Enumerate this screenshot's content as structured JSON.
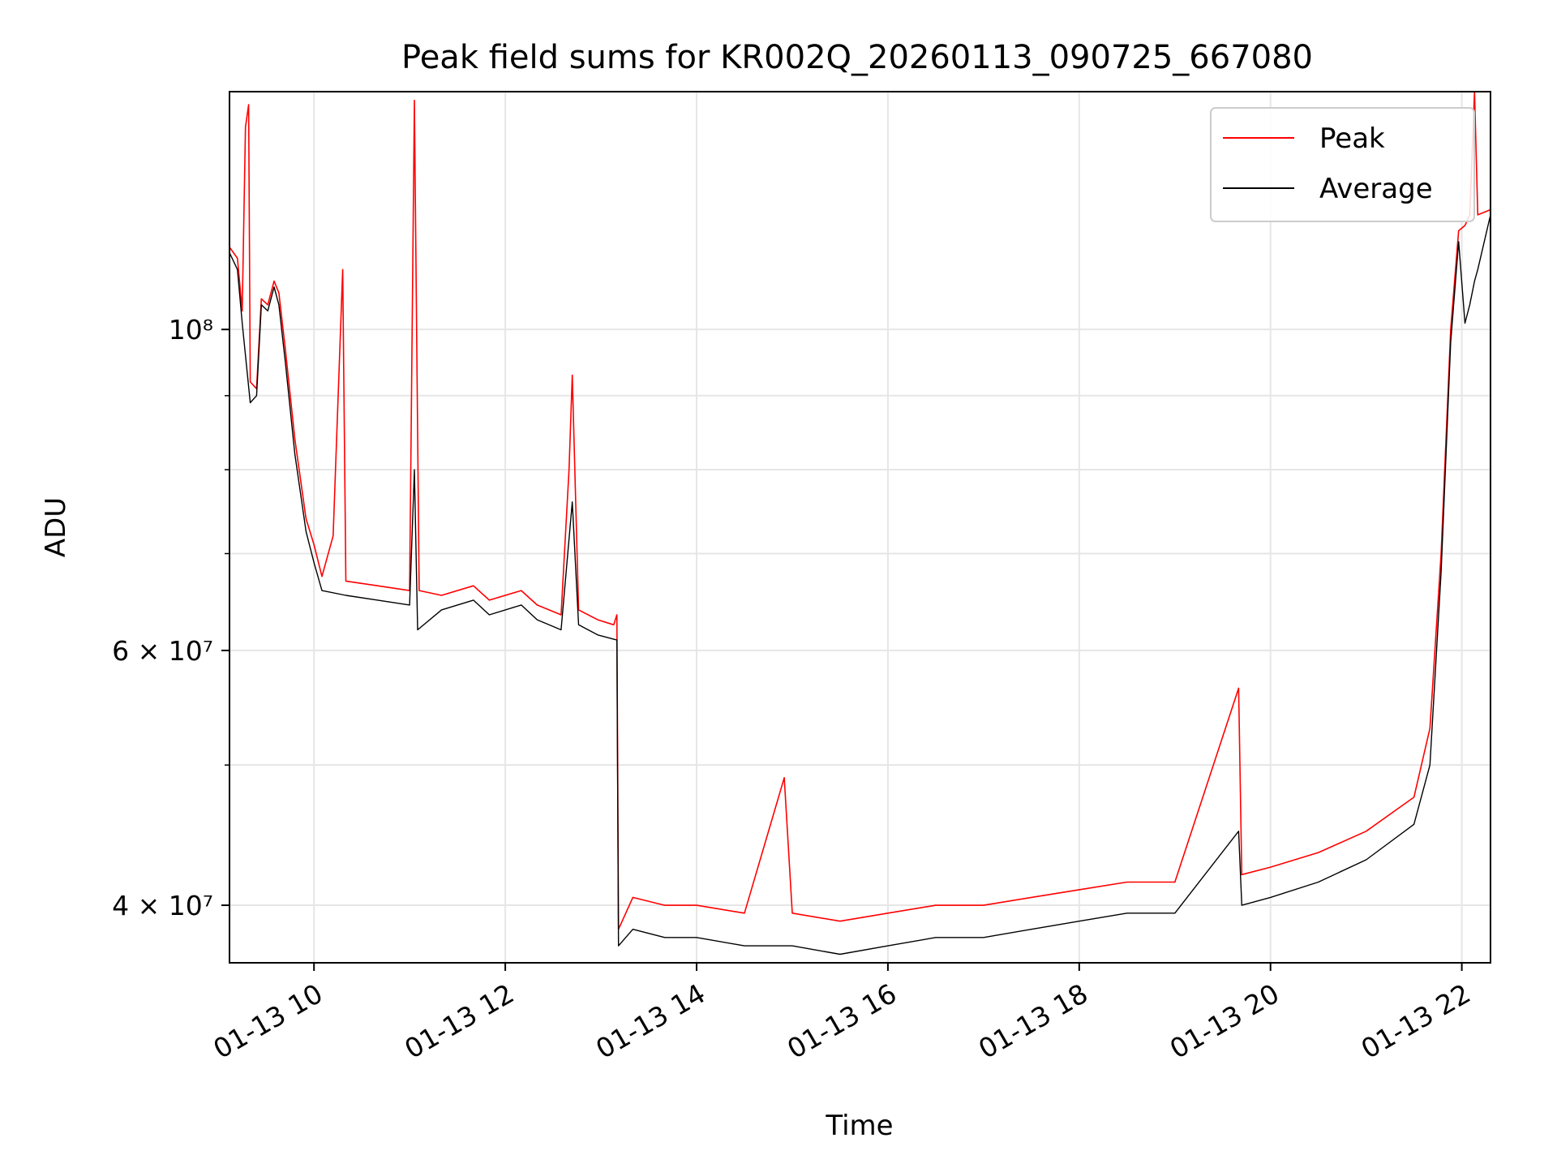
{
  "chart_data": {
    "type": "line",
    "title": "Peak field sums for KR002Q_20260113_090725_667080",
    "xlabel": "Time",
    "ylabel": "ADU",
    "y_scale": "log",
    "xlim": [
      "01-13 09:07",
      "01-13 22:18"
    ],
    "ylim": [
      36500000,
      146000000
    ],
    "x_ticks": [
      "01-13 10",
      "01-13 12",
      "01-13 14",
      "01-13 16",
      "01-13 18",
      "01-13 20",
      "01-13 22"
    ],
    "y_ticks": [
      {
        "value": 40000000,
        "label": "4 × 10⁷"
      },
      {
        "value": 60000000,
        "label": "6 × 10⁷"
      },
      {
        "value": 100000000,
        "label": "10⁸"
      }
    ],
    "y_minor_ticks": [
      50000000,
      70000000,
      80000000,
      90000000
    ],
    "grid": true,
    "legend_position": "top-right",
    "series": [
      {
        "name": "Peak",
        "color": "#ff0000",
        "points": [
          [
            "01-13 09:07",
            114000000
          ],
          [
            "01-13 09:12",
            112000000
          ],
          [
            "01-13 09:15",
            103000000
          ],
          [
            "01-13 09:17",
            138000000
          ],
          [
            "01-13 09:19",
            143000000
          ],
          [
            "01-13 09:20",
            92000000
          ],
          [
            "01-13 09:24",
            91000000
          ],
          [
            "01-13 09:27",
            105000000
          ],
          [
            "01-13 09:31",
            104000000
          ],
          [
            "01-13 09:35",
            108000000
          ],
          [
            "01-13 09:38",
            106000000
          ],
          [
            "01-13 09:42",
            97000000
          ],
          [
            "01-13 09:48",
            84000000
          ],
          [
            "01-13 09:55",
            74000000
          ],
          [
            "01-13 10:00",
            71000000
          ],
          [
            "01-13 10:05",
            67500000
          ],
          [
            "01-13 10:12",
            72000000
          ],
          [
            "01-13 10:18",
            110000000
          ],
          [
            "01-13 10:20",
            67000000
          ],
          [
            "01-13 10:40",
            66500000
          ],
          [
            "01-13 11:00",
            66000000
          ],
          [
            "01-13 11:03",
            144000000
          ],
          [
            "01-13 11:06",
            66000000
          ],
          [
            "01-13 11:20",
            65500000
          ],
          [
            "01-13 11:40",
            66500000
          ],
          [
            "01-13 11:50",
            65000000
          ],
          [
            "01-13 12:10",
            66000000
          ],
          [
            "01-13 12:20",
            64500000
          ],
          [
            "01-13 12:35",
            63500000
          ],
          [
            "01-13 12:40",
            80000000
          ],
          [
            "01-13 12:42",
            93000000
          ],
          [
            "01-13 12:46",
            64000000
          ],
          [
            "01-13 12:58",
            63000000
          ],
          [
            "01-13 13:08",
            62500000
          ],
          [
            "01-13 13:10",
            63500000
          ],
          [
            "01-13 13:11",
            38500000
          ],
          [
            "01-13 13:20",
            40500000
          ],
          [
            "01-13 13:40",
            40000000
          ],
          [
            "01-13 14:00",
            40000000
          ],
          [
            "01-13 14:30",
            39500000
          ],
          [
            "01-13 14:55",
            49000000
          ],
          [
            "01-13 15:00",
            39500000
          ],
          [
            "01-13 15:30",
            39000000
          ],
          [
            "01-13 16:00",
            39500000
          ],
          [
            "01-13 16:30",
            40000000
          ],
          [
            "01-13 17:00",
            40000000
          ],
          [
            "01-13 17:30",
            40500000
          ],
          [
            "01-13 18:00",
            41000000
          ],
          [
            "01-13 18:30",
            41500000
          ],
          [
            "01-13 19:00",
            41500000
          ],
          [
            "01-13 19:40",
            56500000
          ],
          [
            "01-13 19:42",
            42000000
          ],
          [
            "01-13 20:00",
            42500000
          ],
          [
            "01-13 20:30",
            43500000
          ],
          [
            "01-13 21:00",
            45000000
          ],
          [
            "01-13 21:30",
            47500000
          ],
          [
            "01-13 21:40",
            53000000
          ],
          [
            "01-13 21:47",
            70000000
          ],
          [
            "01-13 21:53",
            100000000
          ],
          [
            "01-13 21:58",
            117000000
          ],
          [
            "01-13 22:02",
            118000000
          ],
          [
            "01-13 22:05",
            120000000
          ],
          [
            "01-13 22:08",
            146000000
          ],
          [
            "01-13 22:10",
            120000000
          ],
          [
            "01-13 22:18",
            121000000
          ]
        ]
      },
      {
        "name": "Average",
        "color": "#000000",
        "points": [
          [
            "01-13 09:07",
            113000000
          ],
          [
            "01-13 09:12",
            110000000
          ],
          [
            "01-13 09:15",
            101000000
          ],
          [
            "01-13 09:20",
            89000000
          ],
          [
            "01-13 09:24",
            90000000
          ],
          [
            "01-13 09:27",
            104000000
          ],
          [
            "01-13 09:31",
            103000000
          ],
          [
            "01-13 09:35",
            107000000
          ],
          [
            "01-13 09:38",
            104000000
          ],
          [
            "01-13 09:42",
            95000000
          ],
          [
            "01-13 09:48",
            82000000
          ],
          [
            "01-13 09:55",
            72500000
          ],
          [
            "01-13 10:00",
            69000000
          ],
          [
            "01-13 10:05",
            66000000
          ],
          [
            "01-13 10:20",
            65500000
          ],
          [
            "01-13 10:40",
            65000000
          ],
          [
            "01-13 11:00",
            64500000
          ],
          [
            "01-13 11:03",
            80000000
          ],
          [
            "01-13 11:05",
            62000000
          ],
          [
            "01-13 11:20",
            64000000
          ],
          [
            "01-13 11:40",
            65000000
          ],
          [
            "01-13 11:50",
            63500000
          ],
          [
            "01-13 12:10",
            64500000
          ],
          [
            "01-13 12:20",
            63000000
          ],
          [
            "01-13 12:35",
            62000000
          ],
          [
            "01-13 12:42",
            76000000
          ],
          [
            "01-13 12:46",
            62500000
          ],
          [
            "01-13 12:58",
            61500000
          ],
          [
            "01-13 13:10",
            61000000
          ],
          [
            "01-13 13:11",
            37500000
          ],
          [
            "01-13 13:20",
            38500000
          ],
          [
            "01-13 13:40",
            38000000
          ],
          [
            "01-13 14:00",
            38000000
          ],
          [
            "01-13 14:30",
            37500000
          ],
          [
            "01-13 15:00",
            37500000
          ],
          [
            "01-13 15:30",
            37000000
          ],
          [
            "01-13 16:00",
            37500000
          ],
          [
            "01-13 16:30",
            38000000
          ],
          [
            "01-13 17:00",
            38000000
          ],
          [
            "01-13 17:30",
            38500000
          ],
          [
            "01-13 18:00",
            39000000
          ],
          [
            "01-13 18:30",
            39500000
          ],
          [
            "01-13 19:00",
            39500000
          ],
          [
            "01-13 19:40",
            45000000
          ],
          [
            "01-13 19:42",
            40000000
          ],
          [
            "01-13 20:00",
            40500000
          ],
          [
            "01-13 20:30",
            41500000
          ],
          [
            "01-13 21:00",
            43000000
          ],
          [
            "01-13 21:30",
            45500000
          ],
          [
            "01-13 21:40",
            50000000
          ],
          [
            "01-13 21:47",
            68000000
          ],
          [
            "01-13 21:53",
            98000000
          ],
          [
            "01-13 21:58",
            115000000
          ],
          [
            "01-13 22:02",
            101000000
          ],
          [
            "01-13 22:05",
            104000000
          ],
          [
            "01-13 22:08",
            108000000
          ],
          [
            "01-13 22:10",
            110000000
          ],
          [
            "01-13 22:18",
            120000000
          ]
        ]
      }
    ]
  }
}
